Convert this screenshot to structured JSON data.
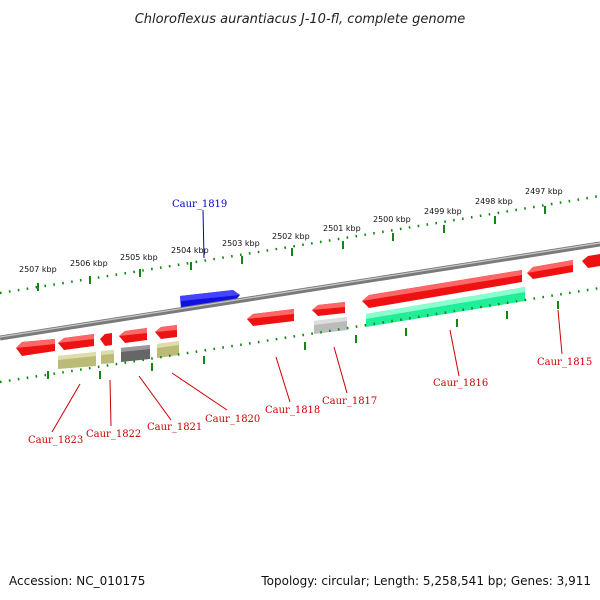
{
  "title": "Chloroflexus aurantiacus J-10-fl, complete genome",
  "footer": {
    "accession": "Accession: NC_010175",
    "summary": "Topology: circular; Length: 5,258,541 bp; Genes: 3,911"
  },
  "colors": {
    "forward_gene": "#ee1111",
    "reverse_gene": "#ee1111",
    "highlight_gene": "#1111dd",
    "rrna_gene": "#22ee99",
    "pseudo_gene": "#bbbb77",
    "dark_gene": "#666666",
    "light_gene": "#bbbbbb",
    "backbone": "#888888",
    "ticks": "#118811",
    "label_red": "#cc0000",
    "label_blue": "#0000cc"
  },
  "scale_ticks": [
    {
      "label": "2507 kbp"
    },
    {
      "label": "2506 kbp"
    },
    {
      "label": "2505 kbp"
    },
    {
      "label": "2504 kbp"
    },
    {
      "label": "2503 kbp"
    },
    {
      "label": "2502 kbp"
    },
    {
      "label": "2501 kbp"
    },
    {
      "label": "2500 kbp"
    },
    {
      "label": "2499 kbp"
    },
    {
      "label": "2498 kbp"
    },
    {
      "label": "2497 kbp"
    }
  ],
  "gene_labels": [
    {
      "name": "Caur_1819",
      "color": "blue"
    },
    {
      "name": "Caur_1823",
      "color": "red"
    },
    {
      "name": "Caur_1822",
      "color": "red"
    },
    {
      "name": "Caur_1821",
      "color": "red"
    },
    {
      "name": "Caur_1820",
      "color": "red"
    },
    {
      "name": "Caur_1818",
      "color": "red"
    },
    {
      "name": "Caur_1817",
      "color": "red"
    },
    {
      "name": "Caur_1816",
      "color": "red"
    },
    {
      "name": "Caur_1815",
      "color": "red"
    }
  ]
}
